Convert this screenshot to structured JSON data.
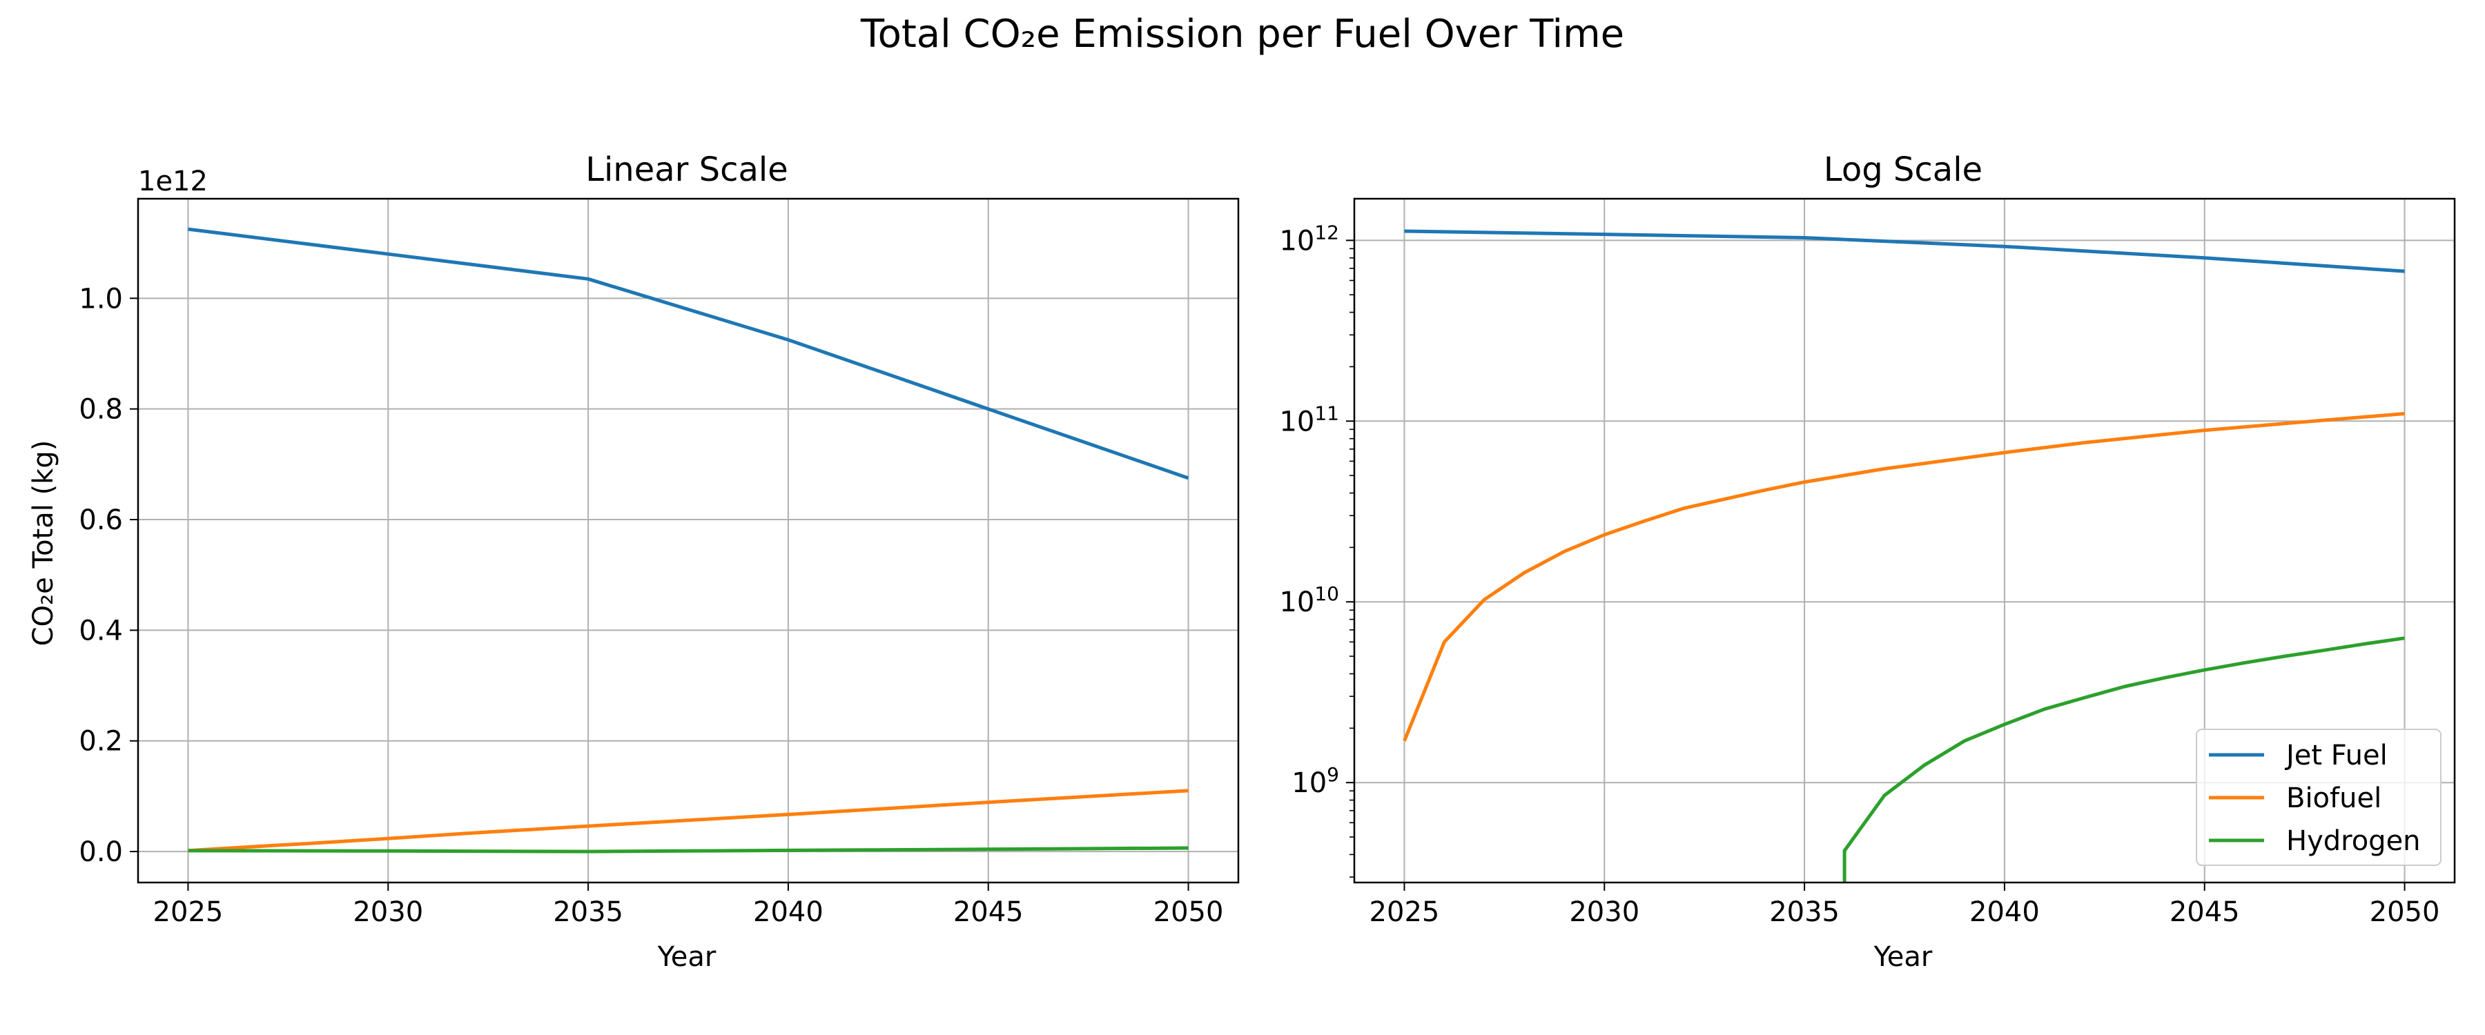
{
  "figure": {
    "title": "Total CO₂e Emission per Fuel Over Time"
  },
  "colors": {
    "jet_fuel": "#1f77b4",
    "biofuel": "#ff7f0e",
    "hydrogen": "#2ca02c",
    "grid": "#b0b0b0"
  },
  "legend": {
    "placement": "lower right",
    "entries": [
      "Jet Fuel",
      "Biofuel",
      "Hydrogen"
    ]
  },
  "chart_data": [
    {
      "type": "line",
      "title": "Linear Scale",
      "xlabel": "Year",
      "ylabel": "CO₂e Total (kg)",
      "y_offset_label": "1e12",
      "scale": "linear",
      "grid": true,
      "xlim": [
        2023.75,
        2051.25
      ],
      "ylim": [
        -56000000000.0,
        1180000000000.0
      ],
      "x_ticks": [
        2025,
        2030,
        2035,
        2040,
        2045,
        2050
      ],
      "y_ticks": [
        0.0,
        200000000000.0,
        400000000000.0,
        600000000000.0,
        800000000000.0,
        1000000000000.0
      ],
      "y_tick_labels": [
        "0.0",
        "0.2",
        "0.4",
        "0.6",
        "0.8",
        "1.0"
      ],
      "series": [
        {
          "name": "Jet Fuel",
          "color": "#1f77b4",
          "x": [
            2025,
            2030,
            2035,
            2040,
            2045,
            2050
          ],
          "y": [
            1125000000000.0,
            1080000000000.0,
            1035000000000.0,
            925000000000.0,
            800000000000.0,
            675000000000.0
          ]
        },
        {
          "name": "Biofuel",
          "color": "#ff7f0e",
          "x": [
            2025,
            2026,
            2027,
            2028,
            2029,
            2030,
            2032,
            2035,
            2040,
            2045,
            2050
          ],
          "y": [
            1700000000.0,
            6000000000.0,
            10300000000.0,
            14500000000.0,
            19000000000.0,
            23500000000.0,
            33000000000.0,
            46000000000.0,
            67000000000.0,
            89000000000.0,
            110000000000.0
          ]
        },
        {
          "name": "Hydrogen",
          "color": "#2ca02c",
          "x": [
            2025,
            2030,
            2035,
            2036,
            2037,
            2038,
            2039,
            2040,
            2042,
            2045,
            2050
          ],
          "y": [
            1500000000.0,
            1000000000.0,
            0,
            400000000.0,
            850000000.0,
            1250000000.0,
            1700000000.0,
            2100000000.0,
            2900000000.0,
            4100000000.0,
            6300000000.0
          ]
        }
      ]
    },
    {
      "type": "line",
      "title": "Log Scale",
      "xlabel": "Year",
      "ylabel": "",
      "scale": "log",
      "grid": true,
      "xlim": [
        2023.75,
        2051.25
      ],
      "ylim": [
        280000000.0,
        1700000000000.0
      ],
      "x_ticks": [
        2025,
        2030,
        2035,
        2040,
        2045,
        2050
      ],
      "y_ticks": [
        1000000000.0,
        10000000000.0,
        100000000000.0,
        1000000000000.0
      ],
      "y_tick_exponents": [
        "9",
        "10",
        "11",
        "12"
      ],
      "y_tick_base": "10",
      "series": [
        {
          "name": "Jet Fuel",
          "color": "#1f77b4",
          "x": [
            2025,
            2030,
            2035,
            2040,
            2045,
            2050
          ],
          "y": [
            1125000000000.0,
            1080000000000.0,
            1035000000000.0,
            925000000000.0,
            800000000000.0,
            675000000000.0
          ]
        },
        {
          "name": "Biofuel",
          "color": "#ff7f0e",
          "x": [
            2025,
            2026,
            2027,
            2028,
            2029,
            2030,
            2031,
            2032,
            2033,
            2034,
            2035,
            2037,
            2040,
            2042,
            2045,
            2047,
            2050
          ],
          "y": [
            1700000000.0,
            6000000000.0,
            10300000000.0,
            14500000000.0,
            19000000000.0,
            23500000000.0,
            28000000000.0,
            33000000000.0,
            37000000000.0,
            41500000000.0,
            46000000000.0,
            54500000000.0,
            67000000000.0,
            76000000000.0,
            89000000000.0,
            97000000000.0,
            110000000000.0
          ]
        },
        {
          "name": "Hydrogen",
          "color": "#2ca02c",
          "x": [
            2036,
            2036,
            2037,
            2038,
            2039,
            2040,
            2041,
            2042,
            2043,
            2044,
            2045,
            2046,
            2047,
            2048,
            2049,
            2050
          ],
          "y": [
            280000000.0,
            420000000.0,
            850000000.0,
            1250000000.0,
            1700000000.0,
            2100000000.0,
            2550000000.0,
            2950000000.0,
            3400000000.0,
            3800000000.0,
            4200000000.0,
            4600000000.0,
            5000000000.0,
            5400000000.0,
            5850000000.0,
            6300000000.0
          ]
        }
      ]
    }
  ]
}
